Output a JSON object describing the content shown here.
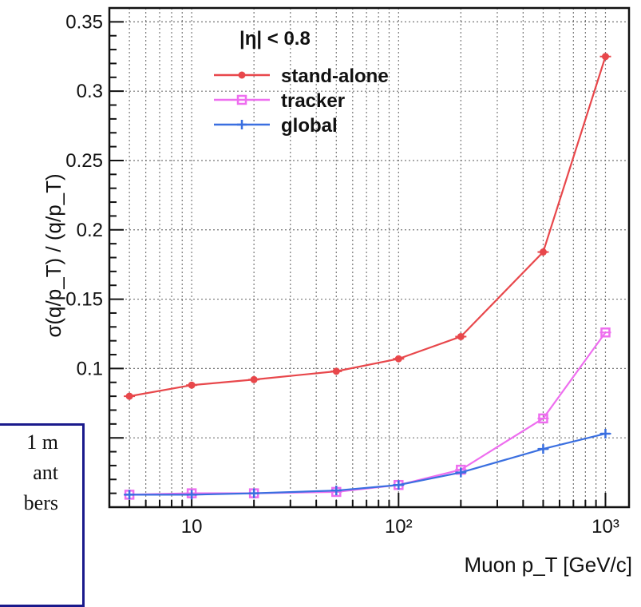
{
  "chart_data": {
    "type": "line",
    "xlabel": "Muon p_T [GeV/c]",
    "ylabel": "σ(q/p_T) / (q/p_T)",
    "xscale": "log",
    "xlim": [
      4,
      1300
    ],
    "ylim": [
      0,
      0.36
    ],
    "x": [
      5,
      10,
      20,
      50,
      100,
      200,
      500,
      1000
    ],
    "yticks": [
      "0.1",
      "0.15",
      "0.2",
      "0.25",
      "0.3",
      "0.35"
    ],
    "xticks": [
      {
        "value": 10,
        "label": "10"
      },
      {
        "value": 100,
        "label": "10²"
      },
      {
        "value": 1000,
        "label": "10³"
      }
    ],
    "legend_title": "|η| < 0.8",
    "legend_position": "top-left",
    "grid": true,
    "series": [
      {
        "name": "stand-alone",
        "color": "#e8474b",
        "marker": "circle",
        "values": [
          0.08,
          0.088,
          0.092,
          0.098,
          0.107,
          0.123,
          0.184,
          0.325
        ]
      },
      {
        "name": "tracker",
        "color": "#ee6eef",
        "marker": "open-square",
        "values": [
          0.009,
          0.01,
          0.01,
          0.011,
          0.016,
          0.027,
          0.064,
          0.126
        ]
      },
      {
        "name": "global",
        "color": "#3a6fe0",
        "marker": "star",
        "values": [
          0.009,
          0.009,
          0.01,
          0.012,
          0.016,
          0.025,
          0.042,
          0.053
        ]
      }
    ]
  },
  "overlay_text": {
    "line1": "1 m",
    "line2": "ant",
    "line3": "bers"
  }
}
